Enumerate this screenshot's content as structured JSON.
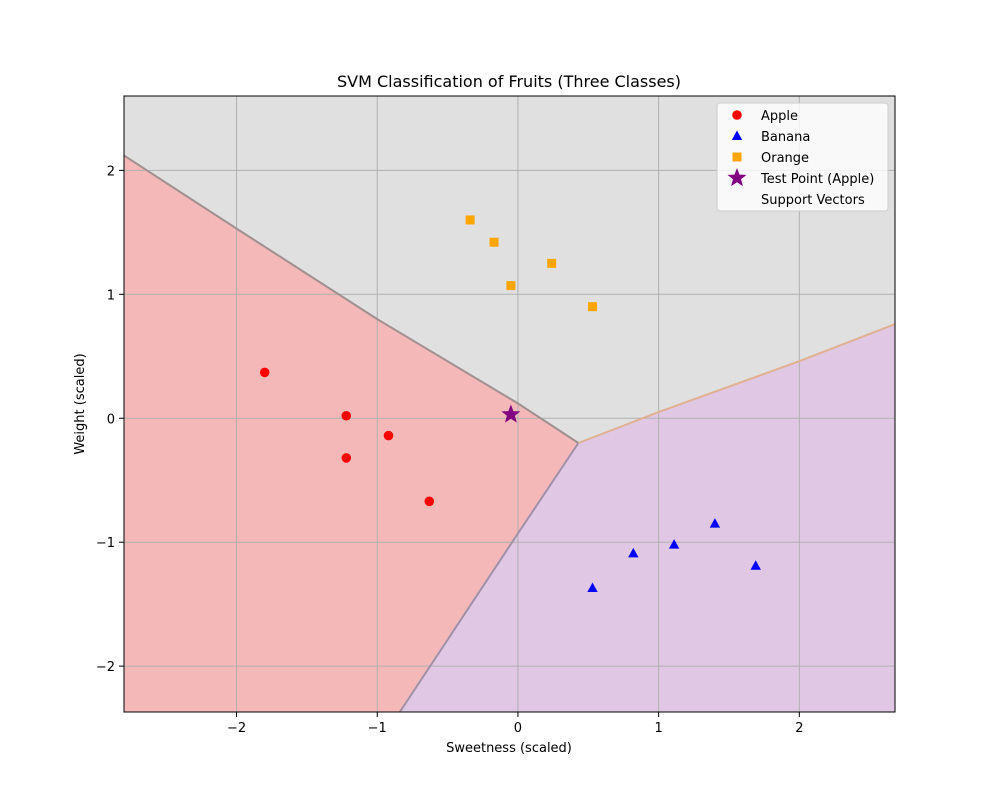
{
  "chart_data": {
    "type": "scatter",
    "title": "SVM Classification of Fruits (Three Classes)",
    "xlabel": "Sweetness (scaled)",
    "ylabel": "Weight (scaled)",
    "xlim": [
      -2.8,
      2.68
    ],
    "ylim": [
      -2.37,
      2.6
    ],
    "xticks": [
      -2,
      -1,
      0,
      1,
      2
    ],
    "yticks": [
      -2,
      -1,
      0,
      1,
      2
    ],
    "grid": true,
    "legend_position": "top-right",
    "series": [
      {
        "name": "Apple",
        "marker": "circle",
        "color": "#ff0000",
        "x": [
          -1.8,
          -1.22,
          -0.92,
          -1.22,
          -0.63
        ],
        "y": [
          0.37,
          0.02,
          -0.14,
          -0.32,
          -0.67
        ]
      },
      {
        "name": "Banana",
        "marker": "triangle",
        "color": "#0000ff",
        "x": [
          0.53,
          0.82,
          1.11,
          1.4,
          1.69
        ],
        "y": [
          -1.37,
          -1.09,
          -1.02,
          -0.85,
          -1.19
        ]
      },
      {
        "name": "Orange",
        "marker": "square",
        "color": "#ffa500",
        "x": [
          -0.34,
          -0.17,
          -0.05,
          0.24,
          0.53
        ],
        "y": [
          1.6,
          1.42,
          1.07,
          1.25,
          0.9
        ]
      },
      {
        "name": "Test Point (Apple)",
        "marker": "star",
        "color": "#800080",
        "x": [
          -0.05
        ],
        "y": [
          0.03
        ]
      },
      {
        "name": "Support Vectors",
        "marker": "none",
        "color": "#ffffff",
        "x": [],
        "y": []
      }
    ],
    "decision_regions": {
      "junction": [
        0.43,
        -0.2
      ],
      "apple_orange_boundary": [
        [
          -2.8,
          2.12
        ],
        [
          -2.0,
          1.53
        ],
        [
          -1.0,
          0.8
        ],
        [
          0.0,
          0.12
        ],
        [
          0.43,
          -0.2
        ]
      ],
      "apple_banana_boundary": [
        [
          0.43,
          -0.2
        ],
        [
          0.0,
          -0.93
        ],
        [
          -0.84,
          -2.37
        ]
      ],
      "orange_banana_boundary": [
        [
          0.43,
          -0.2
        ],
        [
          1.0,
          0.05
        ],
        [
          2.0,
          0.46
        ],
        [
          2.68,
          0.76
        ]
      ],
      "colors": {
        "Apple": "#f5b8b8",
        "Banana": "#e0c8e4",
        "Orange": "#e0e0e0"
      }
    }
  }
}
